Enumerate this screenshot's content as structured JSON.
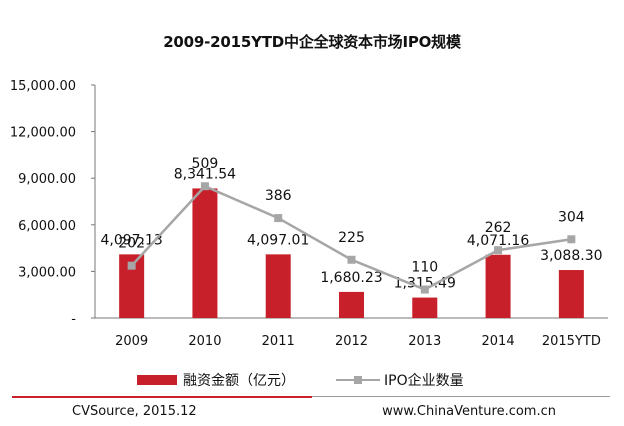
{
  "chart_data": {
    "type": "bar+line",
    "title": "2009-2015YTD中企全球资本市场IPO规模",
    "categories": [
      "2009",
      "2010",
      "2011",
      "2012",
      "2013",
      "2014",
      "2015YTD"
    ],
    "series": [
      {
        "name": "融资金额（亿元）",
        "type": "bar",
        "color": "#c8202a",
        "values": [
          4097.13,
          8341.54,
          4097.01,
          1680.23,
          1315.49,
          4071.16,
          3088.3
        ],
        "labels": [
          "4,097.13",
          "8,341.54",
          "4,097.01",
          "1,680.23",
          "1,315.49",
          "4,071.16",
          "3,088.30"
        ]
      },
      {
        "name": "IPO企业数量",
        "type": "line",
        "color": "#a6a6a6",
        "values": [
          202,
          509,
          386,
          225,
          110,
          262,
          304
        ]
      }
    ],
    "y_ticks": [
      "15,000.00",
      "12,000.00",
      "9,000.00",
      "6,000.00",
      "3,000.00",
      "-"
    ],
    "ylim": [
      0,
      15000
    ],
    "grid": false,
    "legend_position": "bottom"
  },
  "footer": {
    "source": "CVSource, 2015.12",
    "website": "www.ChinaVenture.com.cn"
  },
  "colors": {
    "accent_red": "#c8202a",
    "line_gray": "#a6a6a6"
  }
}
